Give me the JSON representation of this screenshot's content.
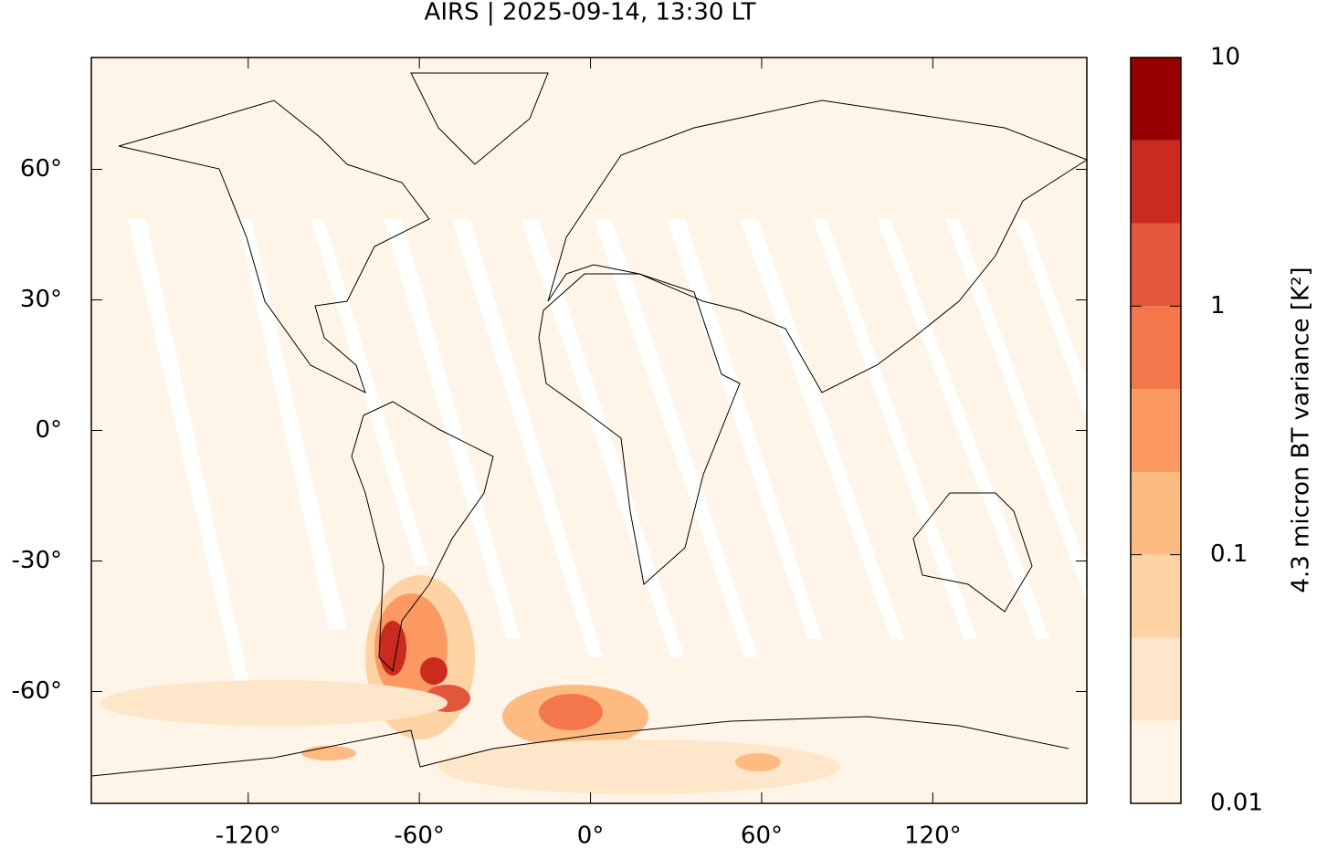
{
  "chart_data": {
    "type": "map",
    "title": "AIRS | 2025-09-14, 13:30 LT",
    "xlim": [
      -175,
      174
    ],
    "ylim": [
      -85.7,
      85.7
    ],
    "xticks": [
      {
        "value": -120,
        "label": "-120°"
      },
      {
        "value": -60,
        "label": "-60°"
      },
      {
        "value": 0,
        "label": "0°"
      },
      {
        "value": 60,
        "label": "60°"
      },
      {
        "value": 120,
        "label": "120°"
      }
    ],
    "yticks": [
      {
        "value": 60,
        "label": "60°"
      },
      {
        "value": 30,
        "label": "30°"
      },
      {
        "value": 0,
        "label": "0°"
      },
      {
        "value": -30,
        "label": "-30°"
      },
      {
        "value": -60,
        "label": "-60°"
      }
    ],
    "colorbar": {
      "label": "4.3 micron BT variance [K²]",
      "log": true,
      "lim": [
        0.01,
        10
      ],
      "ticks": [
        0.01,
        0.1,
        1,
        10
      ],
      "levels": [
        0.01,
        0.0215,
        0.0464,
        0.1,
        0.215,
        0.464,
        1,
        2.15,
        4.64,
        10
      ],
      "colors": [
        "#fef4e8",
        "#fde6ca",
        "#fdd3a3",
        "#fdbb82",
        "#fc9962",
        "#f4774b",
        "#e2563b",
        "#cb2b1e",
        "#990000"
      ]
    }
  }
}
